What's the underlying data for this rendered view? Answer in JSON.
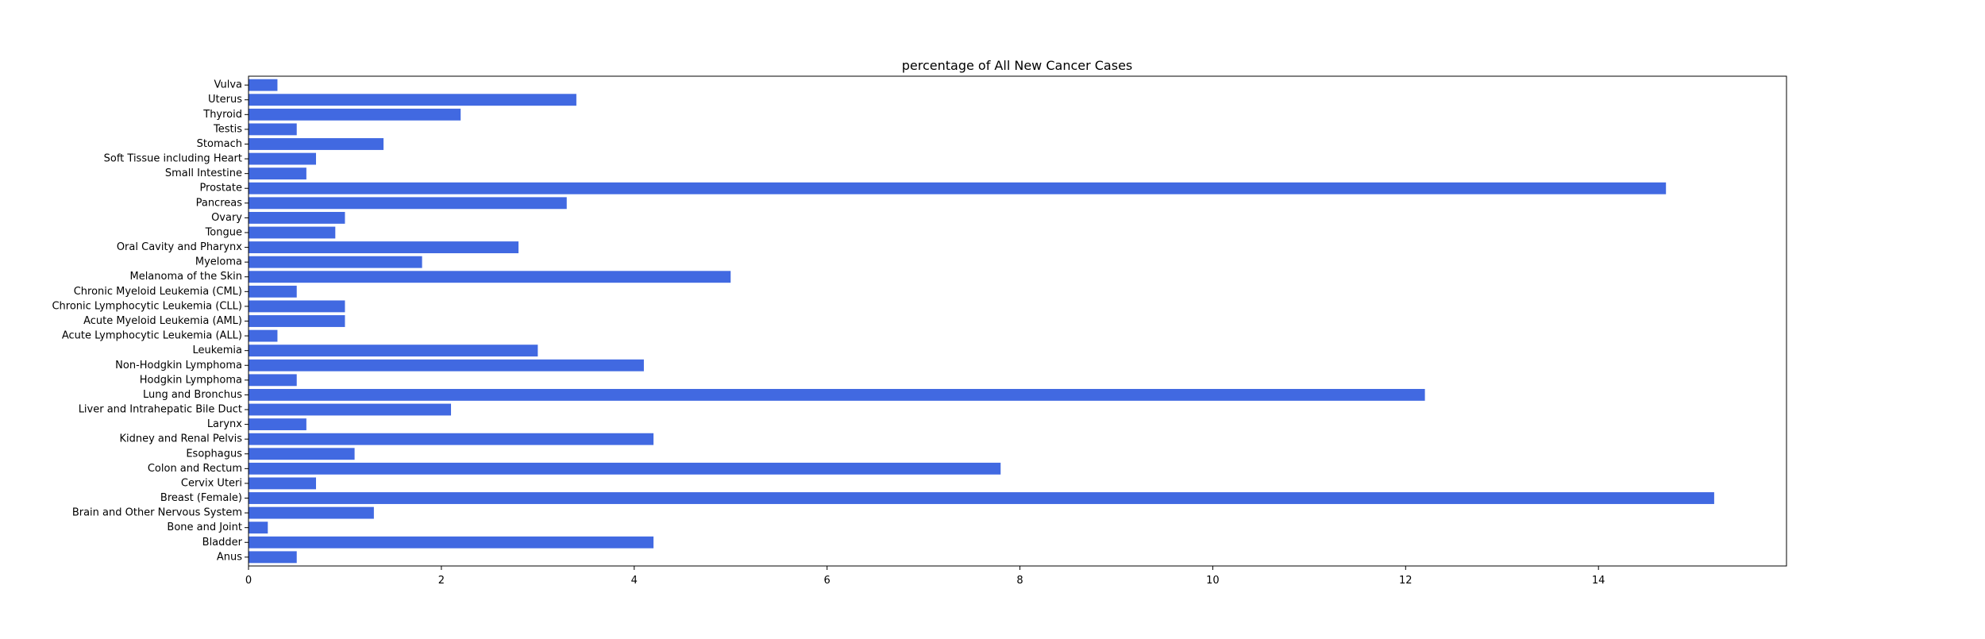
{
  "chart_data": {
    "type": "bar",
    "orientation": "horizontal",
    "title": "percentage of All New Cancer Cases",
    "xlabel": "",
    "ylabel": "",
    "xlim": [
      0,
      15.95
    ],
    "xticks": [
      0,
      2,
      4,
      6,
      8,
      10,
      12,
      14
    ],
    "xtick_labels": [
      "0",
      "2",
      "4",
      "6",
      "8",
      "10",
      "12",
      "14"
    ],
    "grid": false,
    "bar_color": "#4169e1",
    "categories": [
      "Anus",
      "Bladder",
      "Bone and Joint",
      "Brain and Other Nervous System",
      "Breast (Female)",
      "Cervix Uteri",
      "Colon and Rectum",
      "Esophagus",
      "Kidney and Renal Pelvis",
      "Larynx",
      "Liver and Intrahepatic Bile Duct",
      "Lung and Bronchus",
      "Hodgkin Lymphoma",
      "Non-Hodgkin Lymphoma",
      "Leukemia",
      "Acute Lymphocytic Leukemia (ALL)",
      "Acute Myeloid Leukemia (AML)",
      "Chronic Lymphocytic Leukemia (CLL)",
      "Chronic Myeloid Leukemia (CML)",
      "Melanoma of the Skin",
      "Myeloma",
      "Oral Cavity and Pharynx",
      "Tongue",
      "Ovary",
      "Pancreas",
      "Prostate",
      "Small Intestine",
      "Soft Tissue including Heart",
      "Stomach",
      "Testis",
      "Thyroid",
      "Uterus",
      "Vulva"
    ],
    "values": [
      0.5,
      4.2,
      0.2,
      1.3,
      15.2,
      0.7,
      7.8,
      1.1,
      4.2,
      0.6,
      2.1,
      12.2,
      0.5,
      4.1,
      3.0,
      0.3,
      1.0,
      1.0,
      0.5,
      5.0,
      1.8,
      2.8,
      0.9,
      1.0,
      3.3,
      14.7,
      0.6,
      0.7,
      1.4,
      0.5,
      2.2,
      3.4,
      0.3
    ]
  }
}
